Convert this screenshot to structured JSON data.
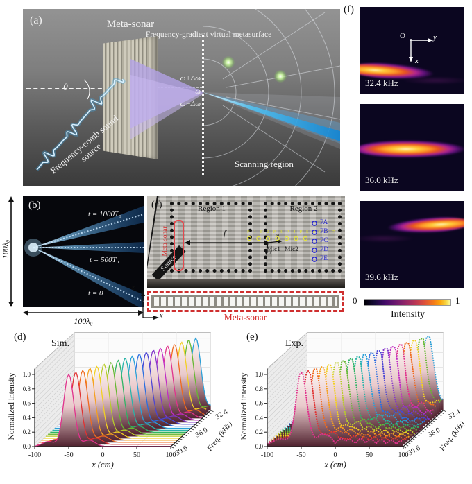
{
  "colors": {
    "accent_red": "#cf2f2f",
    "label_blue": "#2323cf",
    "label_yellow": "#e6e63c",
    "beam_blue": "#28a8e8",
    "inferno_min": "#000004",
    "inferno_max": "#fcffa4"
  },
  "panel_a": {
    "label": "(a)",
    "title": "Meta-sonar",
    "metasurface_label": "Frequency-gradient virtual metasurface",
    "omega_plus": "ω+Δω",
    "omega": "ω",
    "omega_minus": "ω−Δω",
    "theta": "θ",
    "source_label": "Frequency-comb sound source",
    "scanning_label": "Scanning region"
  },
  "panel_b": {
    "label": "(b)",
    "t_1000": "t = 1000T₀",
    "t_500": "t = 500T₀",
    "t_0": "t = 0",
    "width_label": "100λ₀",
    "height_label": "100λ₀"
  },
  "panel_c": {
    "label": "(c)",
    "region_1": "Region 1",
    "region_2": "Region 2",
    "source": "Source",
    "metasonar_vertical": "Meta-sonar",
    "distance_label": "f",
    "axis_x": "x",
    "axis_y": "y",
    "mic_1": "Mic1",
    "mic_2": "Mic2",
    "yellow_points": [
      "P1",
      "P2",
      "P3",
      "P4",
      "P5",
      "P6",
      "P7"
    ],
    "blue_points": [
      "PA",
      "PB",
      "PC",
      "PD",
      "PE"
    ],
    "strip_label": "Meta-sonar",
    "strip_axis_x": "x",
    "strip_axis_z": "z"
  },
  "panel_f": {
    "label": "(f)",
    "origin": "O",
    "axis_x": "x",
    "axis_y": "y",
    "maps": [
      {
        "freq_label": "32.4 kHz"
      },
      {
        "freq_label": "36.0 kHz"
      },
      {
        "freq_label": "39.6 kHz"
      }
    ],
    "colorbar": {
      "min": "0",
      "max": "1",
      "title": "Intensity"
    }
  },
  "chart_data": [
    {
      "id": "sim",
      "panel_label": "(d)",
      "title": "Sim.",
      "type": "waterfall-3d",
      "xlabel": "x (cm)",
      "ylabel": "Normalized intensity",
      "zlabel": "Freq. (kHz)",
      "xlim": [
        -100,
        100
      ],
      "ylim": [
        0,
        1
      ],
      "x_ticks": [
        -100,
        -50,
        0,
        50,
        100
      ],
      "y_ticks": [
        "0.0",
        "0.2",
        "0.4",
        "0.6",
        "0.8",
        "1.0"
      ],
      "z_tick_labels": [
        "39.6",
        "36.0",
        "32.4"
      ],
      "freqs_khz": [
        39.6,
        39.2,
        38.8,
        38.4,
        38.0,
        37.6,
        37.2,
        36.8,
        36.4,
        36.0,
        35.6,
        35.2,
        34.8,
        34.4,
        34.0,
        33.6,
        33.2,
        32.8,
        32.4
      ],
      "peaks_x_cm": [
        -50,
        -42.9,
        -35.8,
        -28.7,
        -21.6,
        -14.4,
        -7.3,
        -0.2,
        6.9,
        14.0,
        21.1,
        28.2,
        35.3,
        42.4,
        49.6,
        56.7,
        63.8,
        70.9,
        78.0
      ],
      "peak_intensity": 1.0,
      "peak_sigma_cm": 7.5,
      "noise": false,
      "markers": false,
      "grid": true,
      "legend": false,
      "palette": [
        "#e0328c",
        "#e03232",
        "#ef6a1e",
        "#f5a020",
        "#f2d022",
        "#b8cc2a",
        "#66b832",
        "#2eb464",
        "#28b4a8",
        "#2aa0d8",
        "#2a6ee0",
        "#4a44d4",
        "#8236cc",
        "#c02cc4",
        "#e0328c",
        "#ef6a1e",
        "#f2d022",
        "#66b832",
        "#2aa0d8"
      ]
    },
    {
      "id": "exp",
      "panel_label": "(e)",
      "title": "Exp.",
      "type": "waterfall-3d",
      "xlabel": "x (cm)",
      "ylabel": "Normalized intensity",
      "zlabel": "Freq. (kHz)",
      "xlim": [
        -100,
        100
      ],
      "ylim": [
        0,
        1
      ],
      "x_ticks": [
        -100,
        -50,
        0,
        50,
        100
      ],
      "y_ticks": [
        "0.0",
        "0.2",
        "0.4",
        "0.6",
        "0.8",
        "1.0"
      ],
      "z_tick_labels": [
        "39.6",
        "36.0",
        "32.4"
      ],
      "freqs_khz": [
        39.6,
        39.2,
        38.8,
        38.4,
        38.0,
        37.6,
        37.2,
        36.8,
        36.4,
        36.0,
        35.6,
        35.2,
        34.8,
        34.4,
        34.0,
        33.6,
        33.2,
        32.8,
        32.4
      ],
      "peaks_x_cm": [
        -50,
        -42.9,
        -35.8,
        -28.7,
        -21.6,
        -14.4,
        -7.3,
        -0.2,
        6.9,
        14.0,
        21.1,
        28.2,
        35.3,
        42.4,
        49.6,
        56.7,
        63.8,
        70.9,
        78.0
      ],
      "peak_intensity": 1.0,
      "peak_sigma_cm": 7.5,
      "noise": true,
      "markers": true,
      "grid": true,
      "legend": false,
      "palette": [
        "#e0328c",
        "#e03232",
        "#ef6a1e",
        "#f5a020",
        "#f2d022",
        "#b8cc2a",
        "#66b832",
        "#2eb464",
        "#28b4a8",
        "#2aa0d8",
        "#2a6ee0",
        "#4a44d4",
        "#8236cc",
        "#c02cc4",
        "#e0328c",
        "#ef6a1e",
        "#f2d022",
        "#66b832",
        "#2aa0d8"
      ]
    }
  ]
}
